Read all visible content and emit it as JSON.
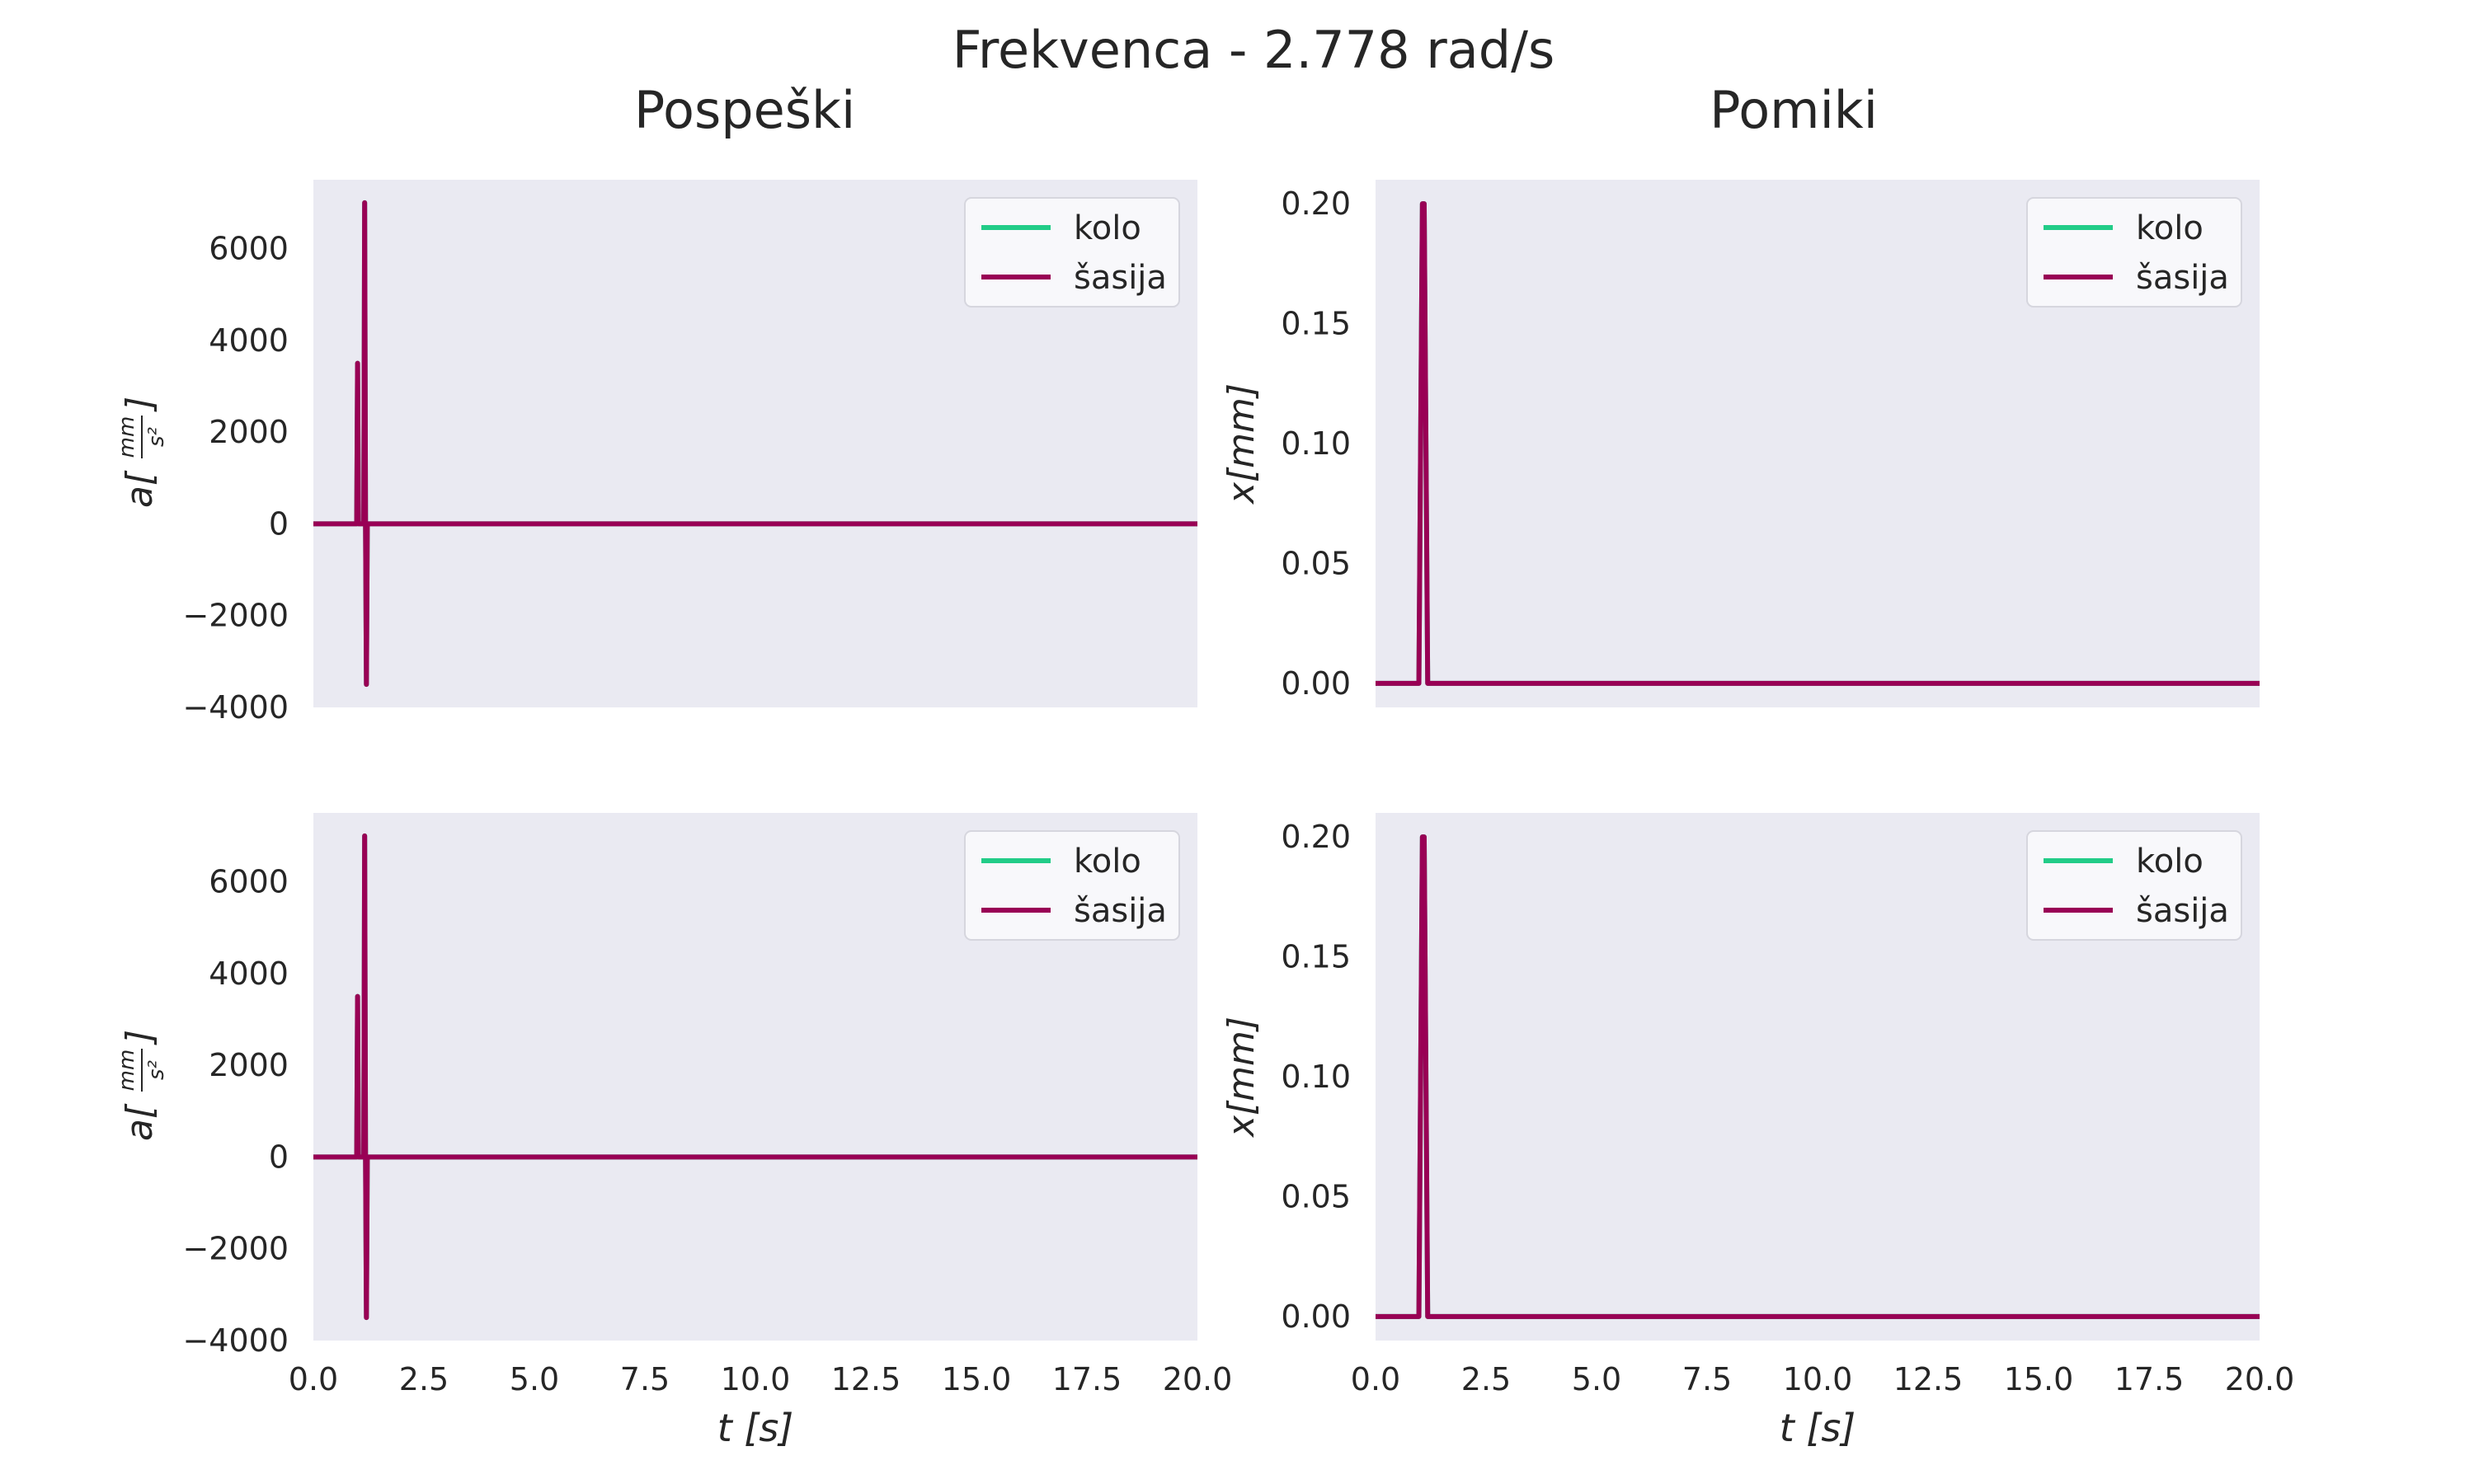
{
  "figure": {
    "suptitle": "Frekvenca - 2.778 rad/s",
    "col_titles": [
      "Pospeški",
      "Pomiki"
    ]
  },
  "colors": {
    "axes_bg": "#eaeaf2",
    "kolo": "#22cc88",
    "sasija": "#990055"
  },
  "chart_data": [
    {
      "type": "line",
      "title": "Pospeški",
      "xlabel": "",
      "ylabel": "a[mm/s²]",
      "ylabel_parts": {
        "prefix": "a",
        "num": "mm",
        "den": "s²"
      },
      "xlim": [
        0,
        20
      ],
      "ylim": [
        -4000,
        7500
      ],
      "xticks": [],
      "yticks": [
        -4000,
        -2000,
        0,
        2000,
        4000,
        6000
      ],
      "ytick_labels": [
        "−4000",
        "−2000",
        "0",
        "2000",
        "4000",
        "6000"
      ],
      "grid": false,
      "legend": {
        "position": "top-right",
        "entries": [
          "kolo",
          "šasija"
        ]
      },
      "series": [
        {
          "name": "kolo",
          "x": [
            0,
            0.98,
            1.0,
            1.02,
            1.04,
            1.14,
            1.16,
            1.18,
            1.2,
            1.22,
            20
          ],
          "y": [
            0,
            0,
            3500,
            0,
            0,
            0,
            7000,
            0,
            -3500,
            0,
            0
          ]
        },
        {
          "name": "šasija",
          "x": [
            0,
            0.98,
            1.0,
            1.02,
            1.04,
            1.14,
            1.16,
            1.18,
            1.2,
            1.22,
            20
          ],
          "y": [
            0,
            0,
            3500,
            0,
            0,
            0,
            7000,
            0,
            -3500,
            0,
            0
          ]
        }
      ]
    },
    {
      "type": "line",
      "title": "Pomiki",
      "xlabel": "",
      "ylabel": "x[mm]",
      "xlim": [
        0,
        20
      ],
      "ylim": [
        -0.01,
        0.21
      ],
      "xticks": [],
      "yticks": [
        0.0,
        0.05,
        0.1,
        0.15,
        0.2
      ],
      "ytick_labels": [
        "0.00",
        "0.05",
        "0.10",
        "0.15",
        "0.20"
      ],
      "grid": false,
      "legend": {
        "position": "top-right",
        "entries": [
          "kolo",
          "šasija"
        ]
      },
      "series": [
        {
          "name": "kolo",
          "x": [
            0,
            0.98,
            1.02,
            1.06,
            1.1,
            1.14,
            1.18,
            20
          ],
          "y": [
            0,
            0,
            0.1,
            0.2,
            0.2,
            0.1,
            0,
            0
          ]
        },
        {
          "name": "šasija",
          "x": [
            0,
            0.98,
            1.02,
            1.06,
            1.1,
            1.14,
            1.18,
            20
          ],
          "y": [
            0,
            0,
            0.1,
            0.2,
            0.2,
            0.1,
            0,
            0
          ]
        }
      ]
    },
    {
      "type": "line",
      "xlabel": "t [s]",
      "ylabel": "a[mm/s²]",
      "ylabel_parts": {
        "prefix": "a",
        "num": "mm",
        "den": "s²"
      },
      "xlim": [
        0,
        20
      ],
      "ylim": [
        -4000,
        7500
      ],
      "xticks": [
        0,
        2.5,
        5,
        7.5,
        10,
        12.5,
        15,
        17.5,
        20
      ],
      "xtick_labels": [
        "0.0",
        "2.5",
        "5.0",
        "7.5",
        "10.0",
        "12.5",
        "15.0",
        "17.5",
        "20.0"
      ],
      "yticks": [
        -4000,
        -2000,
        0,
        2000,
        4000,
        6000
      ],
      "ytick_labels": [
        "−4000",
        "−2000",
        "0",
        "2000",
        "4000",
        "6000"
      ],
      "grid": false,
      "legend": {
        "position": "top-right",
        "entries": [
          "kolo",
          "šasija"
        ]
      },
      "series": [
        {
          "name": "kolo",
          "x": [
            0,
            0.98,
            1.0,
            1.02,
            1.04,
            1.14,
            1.16,
            1.18,
            1.2,
            1.22,
            20
          ],
          "y": [
            0,
            0,
            3500,
            0,
            0,
            0,
            7000,
            0,
            -3500,
            0,
            0
          ]
        },
        {
          "name": "šasija",
          "x": [
            0,
            0.98,
            1.0,
            1.02,
            1.04,
            1.14,
            1.16,
            1.18,
            1.2,
            1.22,
            20
          ],
          "y": [
            0,
            0,
            3500,
            0,
            0,
            0,
            7000,
            0,
            -3500,
            0,
            0
          ]
        }
      ]
    },
    {
      "type": "line",
      "xlabel": "t [s]",
      "ylabel": "x[mm]",
      "xlim": [
        0,
        20
      ],
      "ylim": [
        -0.01,
        0.21
      ],
      "xticks": [
        0,
        2.5,
        5,
        7.5,
        10,
        12.5,
        15,
        17.5,
        20
      ],
      "xtick_labels": [
        "0.0",
        "2.5",
        "5.0",
        "7.5",
        "10.0",
        "12.5",
        "15.0",
        "17.5",
        "20.0"
      ],
      "yticks": [
        0.0,
        0.05,
        0.1,
        0.15,
        0.2
      ],
      "ytick_labels": [
        "0.00",
        "0.05",
        "0.10",
        "0.15",
        "0.20"
      ],
      "grid": false,
      "legend": {
        "position": "top-right",
        "entries": [
          "kolo",
          "šasija"
        ]
      },
      "series": [
        {
          "name": "kolo",
          "x": [
            0,
            0.98,
            1.02,
            1.06,
            1.1,
            1.14,
            1.18,
            20
          ],
          "y": [
            0,
            0,
            0.1,
            0.2,
            0.2,
            0.1,
            0,
            0
          ]
        },
        {
          "name": "šasija",
          "x": [
            0,
            0.98,
            1.02,
            1.06,
            1.1,
            1.14,
            1.18,
            20
          ],
          "y": [
            0,
            0,
            0.1,
            0.2,
            0.2,
            0.1,
            0,
            0
          ]
        }
      ]
    }
  ]
}
